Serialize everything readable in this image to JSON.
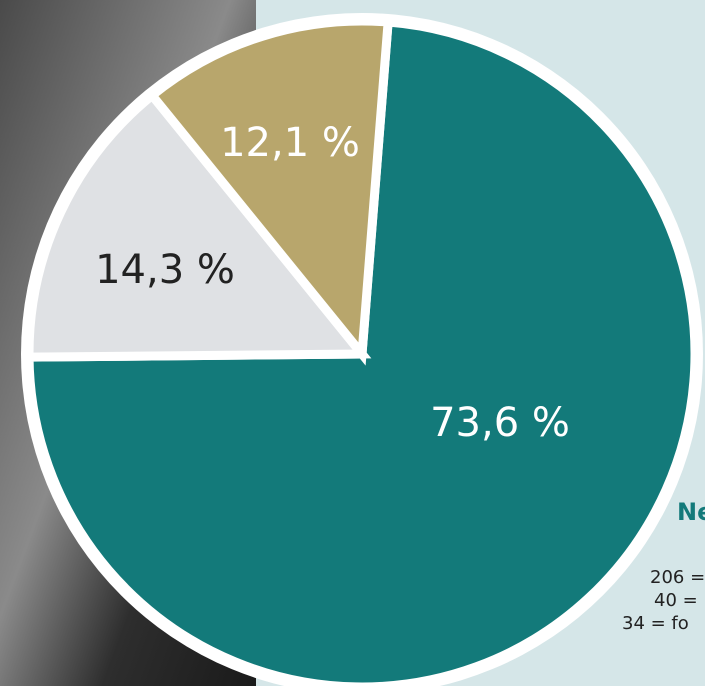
{
  "chart_data": {
    "type": "pie",
    "categories": [
      null,
      null,
      null
    ],
    "values": [
      73.6,
      14.3,
      12.1
    ],
    "value_labels": [
      "73,6 %",
      "14,3 %",
      "12,1 %"
    ],
    "colors": [
      "#137a7a",
      "#dfe1e4",
      "#b8a66c"
    ],
    "legend_title": "Ne",
    "notes": [
      "206 =",
      "40 =",
      "34 = fo"
    ]
  }
}
